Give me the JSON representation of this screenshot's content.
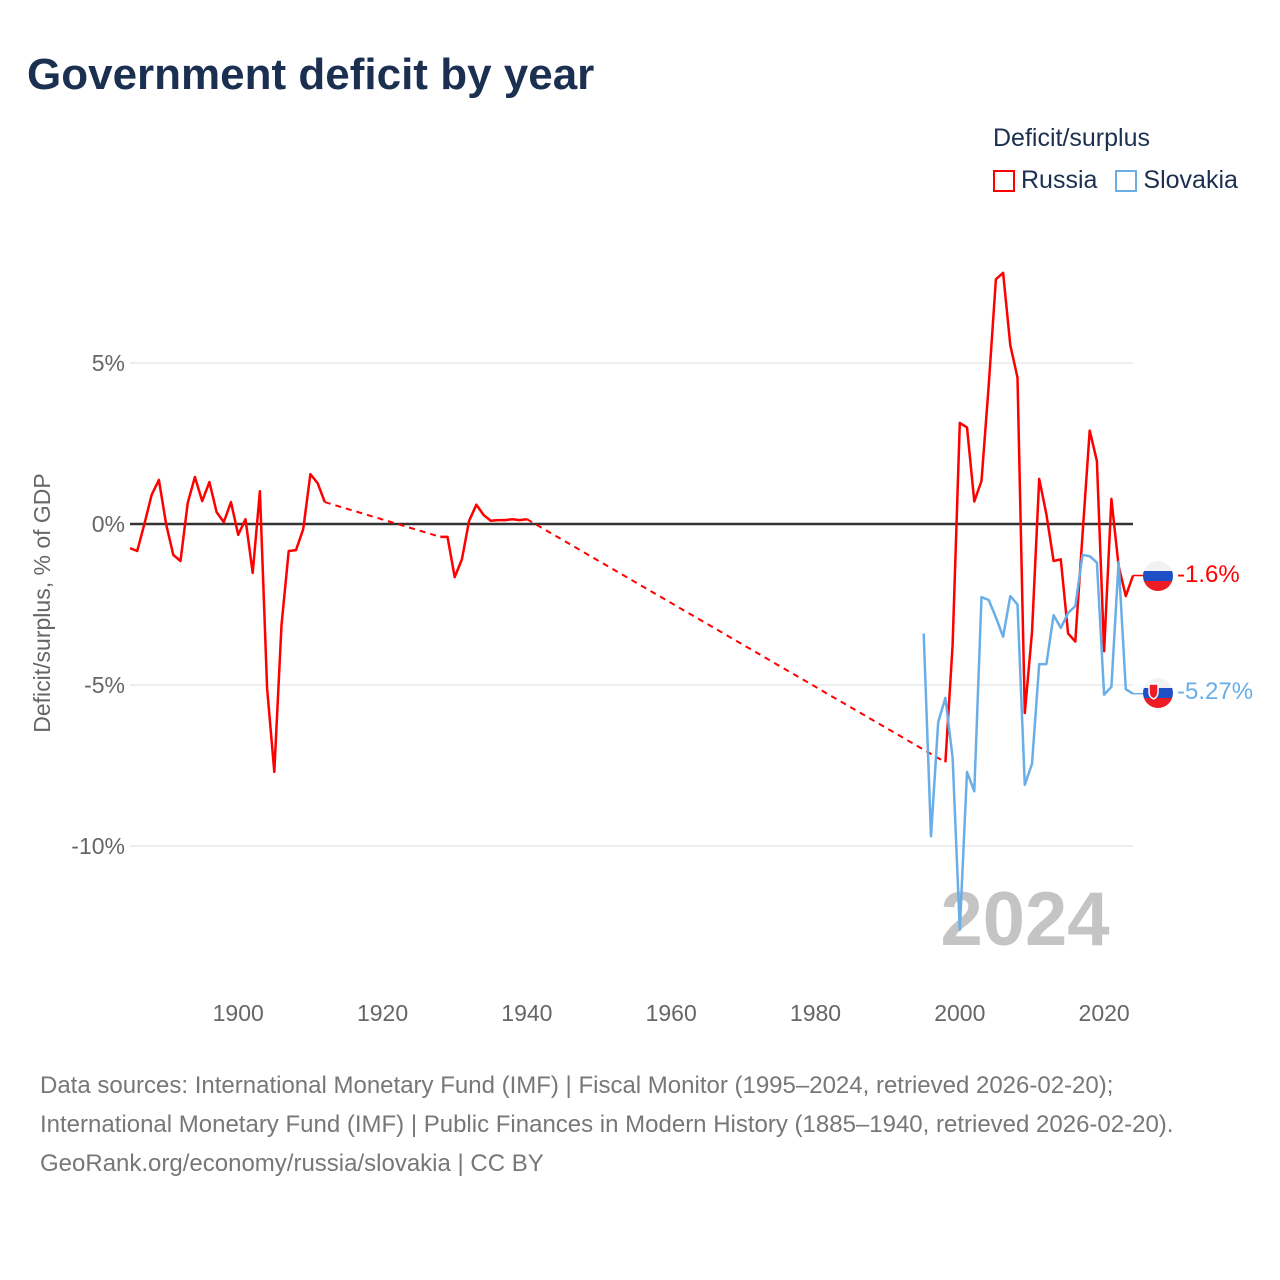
{
  "title": "Government deficit by year",
  "legend": {
    "title": "Deficit/surplus",
    "items": [
      {
        "label": "Russia",
        "color": "#ff0000"
      },
      {
        "label": "Slovakia",
        "color": "#6aaee8"
      }
    ]
  },
  "watermark_year": "2024",
  "end_labels": {
    "russia": "-1.6%",
    "slovakia": "-5.27%"
  },
  "footer": {
    "sources": "Data sources: International Monetary Fund (IMF) | Fiscal Monitor (1995–2024, retrieved 2026-02-20); International Monetary Fund (IMF) | Public Finances in Modern History (1885–1940, retrieved 2026-02-20).",
    "credit": "GeoRank.org/economy/russia/slovakia | CC BY"
  },
  "chart_data": {
    "type": "line",
    "title": "Government deficit by year",
    "xlabel": "",
    "ylabel": "Deficit/surplus, % of GDP",
    "xlim": [
      1885,
      2024
    ],
    "ylim": [
      -13.5,
      8.5
    ],
    "xticks": [
      1900,
      1920,
      1940,
      1960,
      1980,
      2000,
      2020
    ],
    "xtick_labels": [
      "1900",
      "1920",
      "1940",
      "1960",
      "1980",
      "2000",
      "2020"
    ],
    "yticks": [
      5,
      0,
      -5,
      -10
    ],
    "ytick_labels": [
      "5%",
      "0%",
      "-5%",
      "-10%"
    ],
    "legend_position": "top-right",
    "series": [
      {
        "name": "Russia",
        "color": "#ff0000",
        "segments": [
          {
            "x": [
              1885,
              1886,
              1887,
              1888,
              1889,
              1890,
              1891,
              1892,
              1893,
              1894,
              1895,
              1896,
              1897,
              1898,
              1899,
              1900,
              1901,
              1902,
              1903,
              1904,
              1905,
              1906,
              1907,
              1908,
              1909,
              1910,
              1911,
              1912
            ],
            "y": [
              -0.75,
              -0.84,
              0,
              0.9,
              1.37,
              0,
              -0.96,
              -1.15,
              0.65,
              1.46,
              0.71,
              1.3,
              0.37,
              0.06,
              0.68,
              -0.34,
              0.15,
              -1.52,
              1.02,
              -5.1,
              -7.7,
              -3.14,
              -0.84,
              -0.81,
              -0.16,
              1.55,
              1.27,
              0.68
            ]
          },
          {
            "x": [
              1928,
              1929,
              1930,
              1931,
              1932,
              1933,
              1934,
              1935,
              1936,
              1937,
              1938,
              1939,
              1940
            ],
            "y": [
              -0.4,
              -0.4,
              -1.65,
              -1.1,
              0.1,
              0.6,
              0.28,
              0.1,
              0.12,
              0.12,
              0.15,
              0.12,
              0.15
            ]
          },
          {
            "x": [
              1998,
              1999,
              2000,
              2001,
              2002,
              2003,
              2004,
              2005,
              2006,
              2007,
              2008,
              2009,
              2010,
              2011,
              2012,
              2013,
              2014,
              2015,
              2016,
              2017,
              2018,
              2019,
              2020,
              2021,
              2022,
              2023,
              2024
            ],
            "y": [
              -7.4,
              -3.76,
              3.14,
              3.0,
              0.7,
              1.34,
              4.3,
              7.6,
              7.8,
              5.55,
              4.55,
              -5.87,
              -3.36,
              1.4,
              0.3,
              -1.15,
              -1.1,
              -3.4,
              -3.65,
              -0.34,
              2.9,
              1.96,
              -3.95,
              0.78,
              -1.3,
              -2.24,
              -1.6
            ]
          }
        ]
      },
      {
        "name": "Slovakia",
        "color": "#6aaee8",
        "segments": [
          {
            "x": [
              1995,
              1996,
              1997,
              1998,
              1999,
              2000,
              2001,
              2002,
              2003,
              2004,
              2005,
              2006,
              2007,
              2008,
              2009,
              2010,
              2011,
              2012,
              2013,
              2014,
              2015,
              2016,
              2017,
              2018,
              2019,
              2020,
              2021,
              2022,
              2023,
              2024
            ],
            "y": [
              -3.4,
              -9.7,
              -6.15,
              -5.4,
              -7.25,
              -12.6,
              -7.7,
              -8.3,
              -2.27,
              -2.36,
              -2.9,
              -3.5,
              -2.24,
              -2.5,
              -8.1,
              -7.45,
              -4.35,
              -4.35,
              -2.83,
              -3.23,
              -2.76,
              -2.55,
              -0.96,
              -1.0,
              -1.2,
              -5.3,
              -5.06,
              -1.18,
              -5.13,
              -5.27
            ]
          }
        ]
      }
    ]
  }
}
